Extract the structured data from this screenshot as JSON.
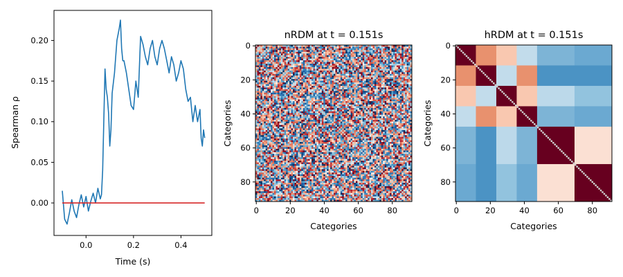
{
  "chart_data": [
    {
      "type": "line",
      "xlabel": "Time (s)",
      "ylabel": "Spearman ρ",
      "xlim": [
        -0.135,
        0.53
      ],
      "ylim": [
        -0.04,
        0.237
      ],
      "x_ticks": [
        0.0,
        0.2,
        0.4
      ],
      "x_tick_labels": [
        "0.0",
        "0.2",
        "0.4"
      ],
      "y_ticks": [
        0.0,
        0.05,
        0.1,
        0.15,
        0.2
      ],
      "y_tick_labels": [
        "0.00",
        "0.05",
        "0.10",
        "0.15",
        "0.20"
      ],
      "grid": false,
      "series": [
        {
          "color": "#1f77b4",
          "x": [
            -0.1,
            -0.09,
            -0.08,
            -0.07,
            -0.06,
            -0.05,
            -0.04,
            -0.03,
            -0.02,
            -0.01,
            0.0,
            0.01,
            0.02,
            0.03,
            0.04,
            0.05,
            0.06,
            0.065,
            0.07,
            0.08,
            0.085,
            0.09,
            0.095,
            0.1,
            0.105,
            0.11,
            0.12,
            0.13,
            0.14,
            0.145,
            0.15,
            0.155,
            0.16,
            0.17,
            0.18,
            0.19,
            0.2,
            0.21,
            0.22,
            0.23,
            0.24,
            0.25,
            0.26,
            0.27,
            0.28,
            0.29,
            0.3,
            0.31,
            0.32,
            0.33,
            0.34,
            0.35,
            0.36,
            0.37,
            0.38,
            0.39,
            0.4,
            0.41,
            0.42,
            0.43,
            0.44,
            0.45,
            0.46,
            0.47,
            0.48,
            0.485,
            0.49,
            0.495,
            0.5
          ],
          "y": [
            0.015,
            -0.02,
            -0.026,
            -0.012,
            0.004,
            -0.01,
            -0.018,
            -0.002,
            0.01,
            -0.005,
            0.008,
            -0.01,
            0.002,
            0.012,
            0.0,
            0.018,
            0.005,
            0.01,
            0.04,
            0.165,
            0.14,
            0.13,
            0.11,
            0.07,
            0.09,
            0.135,
            0.16,
            0.2,
            0.215,
            0.225,
            0.19,
            0.175,
            0.175,
            0.16,
            0.14,
            0.12,
            0.115,
            0.15,
            0.13,
            0.205,
            0.195,
            0.18,
            0.17,
            0.19,
            0.2,
            0.18,
            0.17,
            0.19,
            0.2,
            0.19,
            0.175,
            0.16,
            0.18,
            0.17,
            0.15,
            0.16,
            0.175,
            0.165,
            0.14,
            0.125,
            0.13,
            0.1,
            0.12,
            0.1,
            0.115,
            0.08,
            0.07,
            0.09,
            0.08
          ]
        },
        {
          "color": "#d62728",
          "x": [
            -0.1,
            0.5
          ],
          "y": [
            0.0,
            0.0
          ]
        }
      ]
    },
    {
      "type": "heatmap",
      "title": "nRDM at t = 0.151s",
      "xlabel": "Categories",
      "ylabel": "Categories",
      "x_tick_labels": [
        "0",
        "20",
        "40",
        "60",
        "80"
      ],
      "y_tick_labels": [
        "0",
        "20",
        "40",
        "60",
        "80"
      ],
      "size": 92,
      "colormap": "RdBu_r",
      "diagonal_color": "#cfcfcf"
    },
    {
      "type": "heatmap",
      "title": "hRDM at t = 0.151s",
      "xlabel": "Categories",
      "ylabel": "Categories",
      "x_tick_labels": [
        "0",
        "20",
        "40",
        "60",
        "80"
      ],
      "y_tick_labels": [
        "0",
        "20",
        "40",
        "60",
        "80"
      ],
      "size": 92,
      "colormap": "RdBu_r",
      "diagonal_color": "#cfcfcf",
      "block_edges": [
        0,
        12,
        24,
        36,
        48,
        70,
        92
      ],
      "block_colors": [
        [
          "#67001f",
          "#e8916e",
          "#f9c8b0",
          "#c2dceb",
          "#7db4d6",
          "#6ba9d1"
        ],
        [
          "#e8916e",
          "#67001f",
          "#c2dceb",
          "#e8916e",
          "#4b93c4",
          "#4b93c4"
        ],
        [
          "#f9c8b0",
          "#c2dceb",
          "#67001f",
          "#f9c8b0",
          "#bcd9ea",
          "#92c3de"
        ],
        [
          "#c2dceb",
          "#e8916e",
          "#f9c8b0",
          "#67001f",
          "#7db4d6",
          "#6ba9d1"
        ],
        [
          "#7db4d6",
          "#4b93c4",
          "#bcd9ea",
          "#7db4d6",
          "#67001f",
          "#fbe0d3"
        ],
        [
          "#6ba9d1",
          "#4b93c4",
          "#92c3de",
          "#6ba9d1",
          "#fbe0d3",
          "#67001f"
        ]
      ]
    }
  ]
}
